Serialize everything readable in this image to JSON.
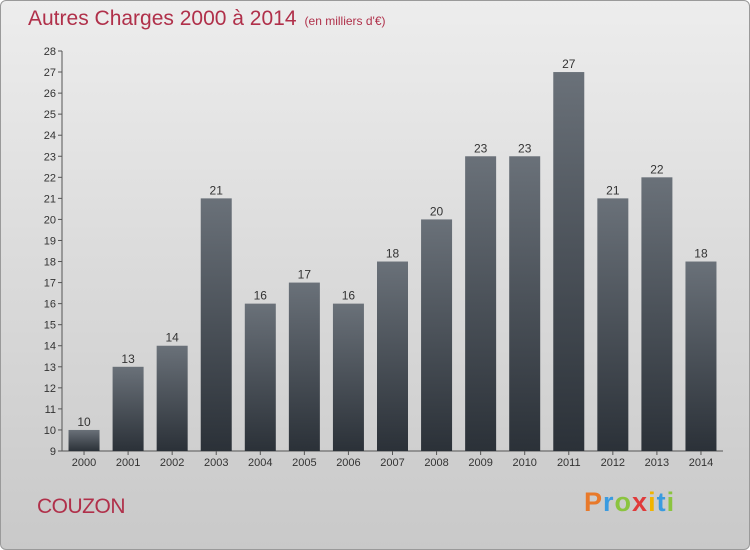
{
  "header": {
    "title": "Autres Charges 2000 à 2014",
    "unit": "(en milliers d'€)"
  },
  "footer": {
    "city": "COUZON",
    "logo": "Proxiti"
  },
  "colors": {
    "title": "#b0304a",
    "bar_top": "#6a7179",
    "bar_bottom": "#2b3138",
    "axis": "#555555"
  },
  "chart_data": {
    "type": "bar",
    "title": "Autres Charges 2000 à 2014",
    "subtitle": "(en milliers d'€)",
    "xlabel": "",
    "ylabel": "",
    "categories": [
      "2000",
      "2001",
      "2002",
      "2003",
      "2004",
      "2005",
      "2006",
      "2007",
      "2008",
      "2009",
      "2010",
      "2011",
      "2012",
      "2013",
      "2014"
    ],
    "values": [
      10,
      13,
      14,
      21,
      16,
      17,
      16,
      18,
      20,
      23,
      23,
      27,
      21,
      22,
      18
    ],
    "ylim": [
      9,
      28
    ],
    "yticks": [
      9,
      10,
      11,
      12,
      13,
      14,
      15,
      16,
      17,
      18,
      19,
      20,
      21,
      22,
      23,
      24,
      25,
      26,
      27,
      28
    ],
    "grid": false,
    "data_labels": true
  }
}
